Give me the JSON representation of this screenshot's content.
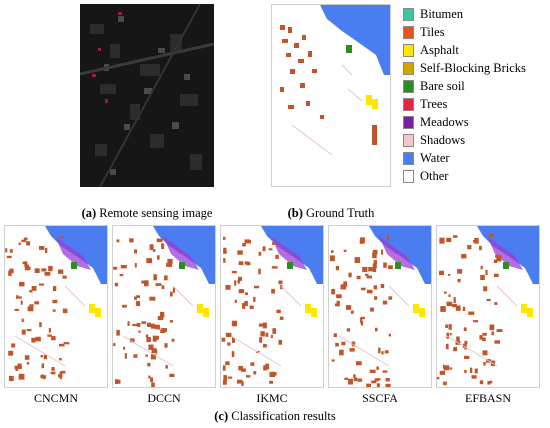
{
  "top": {
    "remote_caption_letter": "(a)",
    "remote_caption_text": "Remote sensing image",
    "gt_caption_letter": "(b)",
    "gt_caption_text": "Ground Truth"
  },
  "legend": {
    "items": [
      {
        "label": "Bitumen",
        "color": "#3cc7a0"
      },
      {
        "label": "Tiles",
        "color": "#e4551e"
      },
      {
        "label": "Asphalt",
        "color": "#ffe600"
      },
      {
        "label": "Self-Blocking Bricks",
        "color": "#d4a500"
      },
      {
        "label": "Bare soil",
        "color": "#2f8c25"
      },
      {
        "label": "Trees",
        "color": "#e8243c"
      },
      {
        "label": "Meadows",
        "color": "#7b1ea3"
      },
      {
        "label": "Shadows",
        "color": "#f2c6cc"
      },
      {
        "label": "Water",
        "color": "#4a7df0"
      },
      {
        "label": "Other",
        "color": "#ffffff"
      }
    ]
  },
  "results": {
    "methods": [
      "CNCMN",
      "DCCN",
      "IKMC",
      "SSCFA",
      "EFBASN"
    ],
    "caption_letter": "(c)",
    "caption_text": "Classification results"
  },
  "colors": {
    "water": "#4a7df0",
    "meadows_purple": "#9b3ed6",
    "tiles": "#c0552a",
    "asphalt": "#ffe600",
    "bare_soil": "#2f8c25",
    "shadows": "#e9c2c6"
  }
}
